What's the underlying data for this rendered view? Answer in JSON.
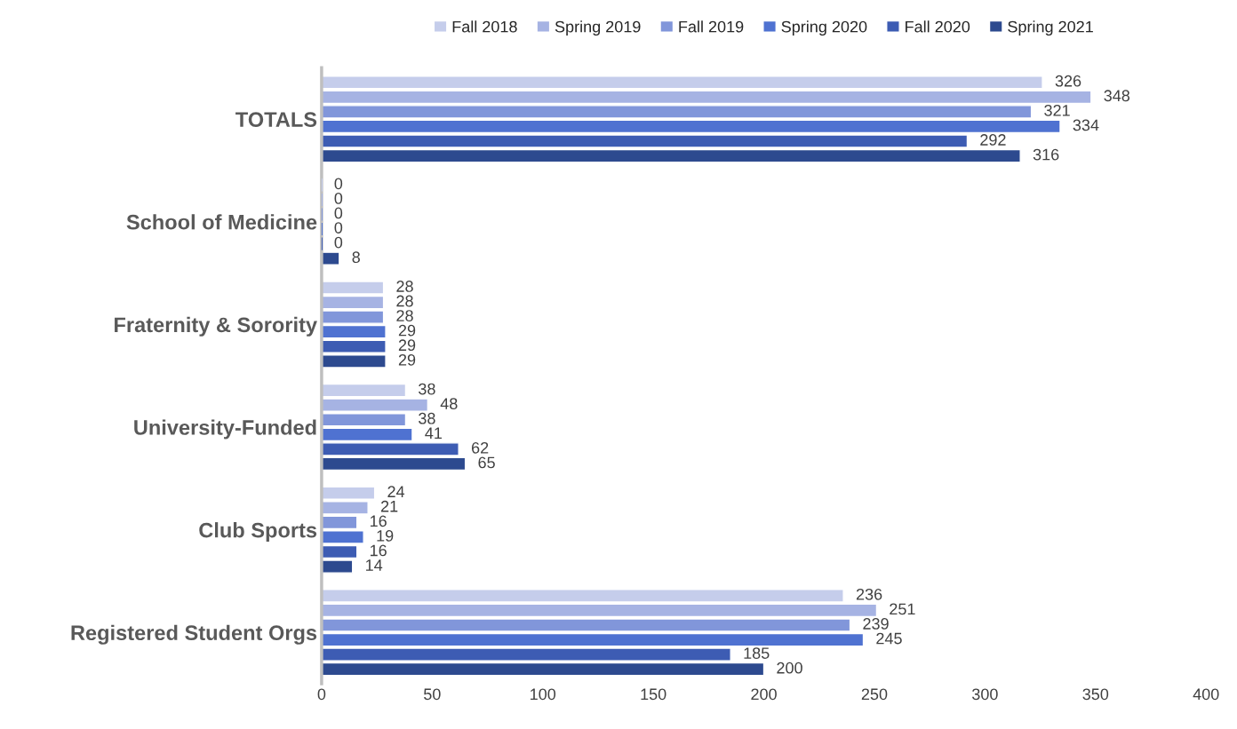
{
  "chart_data": {
    "type": "bar",
    "orientation": "horizontal",
    "categories": [
      "TOTALS",
      "School of Medicine",
      "Fraternity & Sorority",
      "University-Funded",
      "Club Sports",
      "Registered Student Orgs"
    ],
    "series": [
      {
        "name": "Fall 2018",
        "color": "#c5cdeb",
        "values": [
          326,
          0,
          28,
          38,
          24,
          236
        ]
      },
      {
        "name": "Spring 2019",
        "color": "#a6b3e3",
        "values": [
          348,
          0,
          28,
          48,
          21,
          251
        ]
      },
      {
        "name": "Fall 2019",
        "color": "#8196da",
        "values": [
          321,
          0,
          28,
          38,
          16,
          239
        ]
      },
      {
        "name": "Spring 2020",
        "color": "#4f72d1",
        "values": [
          334,
          0,
          29,
          41,
          19,
          245
        ]
      },
      {
        "name": "Fall 2020",
        "color": "#3d5cb3",
        "values": [
          292,
          0,
          29,
          62,
          16,
          185
        ]
      },
      {
        "name": "Spring 2021",
        "color": "#2d4a8f",
        "values": [
          316,
          8,
          29,
          65,
          14,
          200
        ]
      }
    ],
    "xlim": [
      0,
      400
    ],
    "xticks": [
      0,
      50,
      100,
      150,
      200,
      250,
      300,
      350,
      400
    ],
    "data_labels": true,
    "grid": false,
    "legend": "top"
  }
}
